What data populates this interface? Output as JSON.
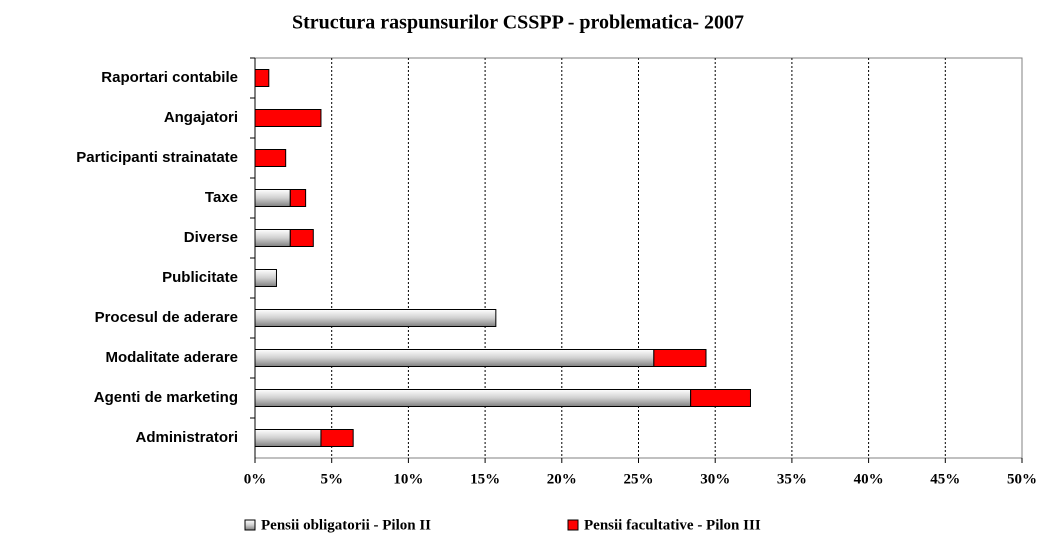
{
  "chart_data": {
    "type": "barh_stacked",
    "title": "Structura raspunsurilor CSSPP - problematica- 2007",
    "categories": [
      "Raportari contabile",
      "Angajatori",
      "Participanti strainatate",
      "Taxe",
      "Diverse",
      "Publicitate",
      "Procesul de aderare",
      "Modalitate aderare",
      "Agenti de marketing",
      "Administratori"
    ],
    "series": [
      {
        "name": "Pensii obligatorii - Pilon II",
        "color": "#d0d0d0",
        "values": [
          0,
          0,
          0,
          2.3,
          2.3,
          1.4,
          15.7,
          26.0,
          28.4,
          4.3
        ]
      },
      {
        "name": "Pensii facultative - Pilon III",
        "color": "#ff0000",
        "values": [
          0.9,
          4.3,
          2.0,
          1.0,
          1.5,
          0,
          0,
          3.4,
          3.9,
          2.1
        ]
      }
    ],
    "xlim": [
      0,
      50
    ],
    "xticks": [
      {
        "value": 0,
        "label": "0%"
      },
      {
        "value": 5,
        "label": "5%"
      },
      {
        "value": 10,
        "label": "10%"
      },
      {
        "value": 15,
        "label": "15%"
      },
      {
        "value": 20,
        "label": "20%"
      },
      {
        "value": 25,
        "label": "25%"
      },
      {
        "value": 30,
        "label": "30%"
      },
      {
        "value": 35,
        "label": "35%"
      },
      {
        "value": 40,
        "label": "40%"
      },
      {
        "value": 45,
        "label": "45%"
      },
      {
        "value": 50,
        "label": "50%"
      }
    ],
    "grid": true,
    "legend": "bottom"
  }
}
